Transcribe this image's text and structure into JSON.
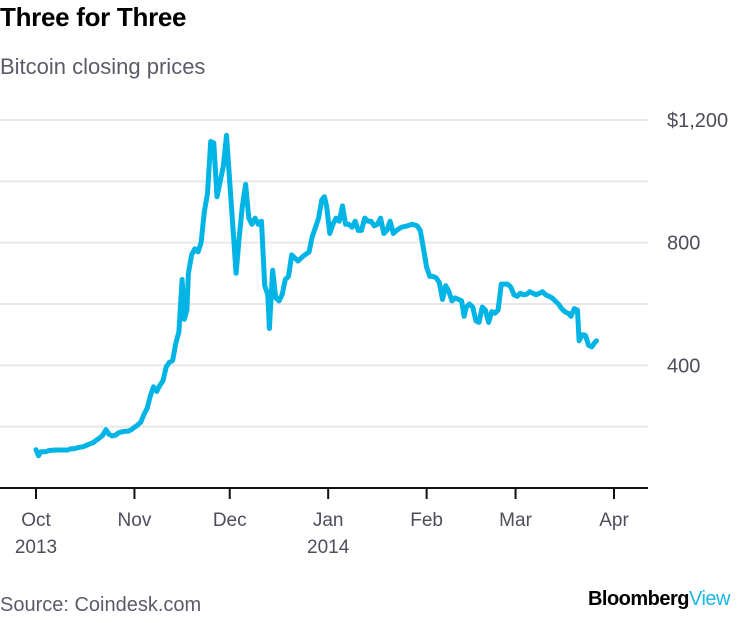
{
  "chart_data": {
    "type": "line",
    "title": "Three for Three",
    "subtitle": "Bitcoin closing prices",
    "xlabel": "",
    "ylabel": "",
    "ylim": [
      0,
      1200
    ],
    "yticks": [
      {
        "value": 1200,
        "label": "$1,200"
      },
      {
        "value": 1000,
        "label": ""
      },
      {
        "value": 800,
        "label": "800"
      },
      {
        "value": 600,
        "label": ""
      },
      {
        "value": 400,
        "label": "400"
      },
      {
        "value": 200,
        "label": ""
      }
    ],
    "xticks": [
      {
        "day": 0,
        "label": "Oct",
        "sublabel": "2013"
      },
      {
        "day": 31,
        "label": "Nov",
        "sublabel": ""
      },
      {
        "day": 61,
        "label": "Dec",
        "sublabel": ""
      },
      {
        "day": 92,
        "label": "Jan",
        "sublabel": "2014"
      },
      {
        "day": 123,
        "label": "Feb",
        "sublabel": ""
      },
      {
        "day": 151,
        "label": "Mar",
        "sublabel": ""
      },
      {
        "day": 182,
        "label": "Apr",
        "sublabel": ""
      }
    ],
    "xlim_days": [
      0,
      182
    ],
    "grid": true,
    "series": [
      {
        "name": "Bitcoin closing price",
        "color": "#00b5e6",
        "points": [
          [
            0,
            125
          ],
          [
            0.8,
            105
          ],
          [
            1.5,
            118
          ],
          [
            3,
            118
          ],
          [
            4,
            122
          ],
          [
            6,
            124
          ],
          [
            8,
            124
          ],
          [
            10,
            124
          ],
          [
            11,
            128
          ],
          [
            12,
            128
          ],
          [
            13,
            131
          ],
          [
            15,
            135
          ],
          [
            17,
            144
          ],
          [
            18,
            148
          ],
          [
            19,
            156
          ],
          [
            20,
            163
          ],
          [
            21,
            172
          ],
          [
            22,
            190
          ],
          [
            23,
            175
          ],
          [
            24,
            170
          ],
          [
            25,
            172
          ],
          [
            26,
            180
          ],
          [
            27,
            183
          ],
          [
            28,
            185
          ],
          [
            29,
            185
          ],
          [
            30,
            190
          ],
          [
            31,
            198
          ],
          [
            32,
            205
          ],
          [
            33,
            215
          ],
          [
            34,
            240
          ],
          [
            35,
            260
          ],
          [
            36,
            300
          ],
          [
            37,
            330
          ],
          [
            38,
            315
          ],
          [
            39,
            335
          ],
          [
            40,
            350
          ],
          [
            41,
            395
          ],
          [
            42,
            410
          ],
          [
            43,
            415
          ],
          [
            44,
            470
          ],
          [
            45,
            510
          ],
          [
            46,
            680
          ],
          [
            46.7,
            550
          ],
          [
            47.5,
            580
          ],
          [
            48,
            700
          ],
          [
            49,
            760
          ],
          [
            50,
            780
          ],
          [
            51,
            770
          ],
          [
            52,
            800
          ],
          [
            53,
            900
          ],
          [
            54,
            960
          ],
          [
            55,
            1130
          ],
          [
            56,
            1125
          ],
          [
            57,
            950
          ],
          [
            58,
            1000
          ],
          [
            59,
            1050
          ],
          [
            60,
            1150
          ],
          [
            61,
            1000
          ],
          [
            62,
            850
          ],
          [
            63,
            700
          ],
          [
            64,
            820
          ],
          [
            65,
            920
          ],
          [
            66,
            990
          ],
          [
            67,
            880
          ],
          [
            68,
            860
          ],
          [
            69,
            880
          ],
          [
            70,
            860
          ],
          [
            71,
            870
          ],
          [
            72,
            660
          ],
          [
            73,
            630
          ],
          [
            73.5,
            520
          ],
          [
            74.5,
            710
          ],
          [
            75.5,
            620
          ],
          [
            76.5,
            610
          ],
          [
            77.5,
            630
          ],
          [
            78.5,
            680
          ],
          [
            79.5,
            690
          ],
          [
            80.5,
            760
          ],
          [
            81.5,
            750
          ],
          [
            82.5,
            740
          ],
          [
            84,
            755
          ],
          [
            86,
            770
          ],
          [
            87,
            820
          ],
          [
            88,
            850
          ],
          [
            89,
            880
          ],
          [
            90,
            940
          ],
          [
            90.8,
            950
          ],
          [
            91.5,
            920
          ],
          [
            92.5,
            830
          ],
          [
            93.5,
            860
          ],
          [
            94.5,
            880
          ],
          [
            95.5,
            870
          ],
          [
            96.5,
            920
          ],
          [
            97.5,
            860
          ],
          [
            98.5,
            860
          ],
          [
            99.5,
            850
          ],
          [
            100.5,
            870
          ],
          [
            101.5,
            840
          ],
          [
            102.5,
            840
          ],
          [
            103.5,
            880
          ],
          [
            104.5,
            870
          ],
          [
            105.5,
            870
          ],
          [
            106.5,
            855
          ],
          [
            107.5,
            860
          ],
          [
            108.5,
            880
          ],
          [
            109.5,
            830
          ],
          [
            110.5,
            840
          ],
          [
            111.5,
            870
          ],
          [
            112.5,
            830
          ],
          [
            113.5,
            840
          ],
          [
            115,
            850
          ],
          [
            117,
            855
          ],
          [
            118.5,
            860
          ],
          [
            120,
            855
          ],
          [
            121,
            840
          ],
          [
            122,
            780
          ],
          [
            123,
            720
          ],
          [
            124,
            690
          ],
          [
            125,
            690
          ],
          [
            126,
            685
          ],
          [
            127,
            670
          ],
          [
            128,
            615
          ],
          [
            129,
            660
          ],
          [
            130,
            640
          ],
          [
            131,
            610
          ],
          [
            132,
            620
          ],
          [
            133,
            615
          ],
          [
            134,
            610
          ],
          [
            134.8,
            560
          ],
          [
            135.5,
            590
          ],
          [
            136.5,
            600
          ],
          [
            137.5,
            590
          ],
          [
            138.5,
            545
          ],
          [
            139.5,
            540
          ],
          [
            140.5,
            590
          ],
          [
            141.5,
            580
          ],
          [
            142.5,
            540
          ],
          [
            143.5,
            575
          ],
          [
            144.5,
            570
          ],
          [
            145.5,
            580
          ],
          [
            146.5,
            665
          ],
          [
            147.5,
            665
          ],
          [
            148.5,
            665
          ],
          [
            149.5,
            655
          ],
          [
            150.5,
            630
          ],
          [
            151.5,
            625
          ],
          [
            152.5,
            635
          ],
          [
            153.5,
            630
          ],
          [
            154.5,
            632
          ],
          [
            155.5,
            640
          ],
          [
            156.5,
            635
          ],
          [
            157.5,
            630
          ],
          [
            158.5,
            635
          ],
          [
            159.5,
            640
          ],
          [
            160.5,
            630
          ],
          [
            161.5,
            625
          ],
          [
            162.5,
            620
          ],
          [
            163.5,
            610
          ],
          [
            164.5,
            600
          ],
          [
            165.5,
            585
          ],
          [
            166.5,
            575
          ],
          [
            167.5,
            570
          ],
          [
            168.5,
            560
          ],
          [
            169.5,
            585
          ],
          [
            170.5,
            580
          ],
          [
            171,
            480
          ],
          [
            172,
            500
          ],
          [
            173,
            498
          ],
          [
            174,
            465
          ],
          [
            175,
            460
          ],
          [
            176,
            475
          ],
          [
            176.5,
            480
          ]
        ]
      }
    ]
  },
  "footer": {
    "source": "Source: Coindesk.com",
    "brand_primary": "Bloomberg",
    "brand_secondary": "View"
  },
  "colors": {
    "line": "#00b5e6",
    "grid": "#e8e8e8",
    "axis": "#111111",
    "brand_accent": "#1ab6e6"
  }
}
